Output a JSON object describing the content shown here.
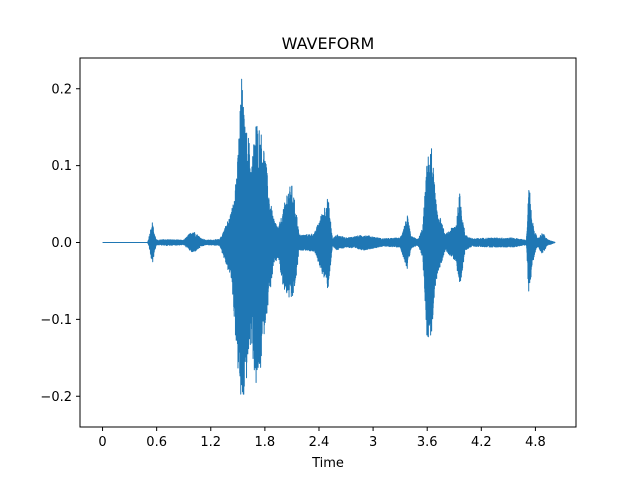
{
  "chart_data": {
    "type": "line",
    "title": "WAVEFORM",
    "xlabel": "Time",
    "ylabel": "",
    "xlim": [
      -0.25,
      5.25
    ],
    "ylim": [
      -0.24,
      0.24
    ],
    "x_ticks": [
      0,
      0.6,
      1.2,
      1.8,
      2.4,
      3.0,
      3.6,
      4.2,
      4.8
    ],
    "x_tick_labels": [
      "0",
      "0.6",
      "1.2",
      "1.8",
      "2.4",
      "3",
      "3.6",
      "4.2",
      "4.8"
    ],
    "y_ticks": [
      -0.2,
      -0.1,
      0.0,
      0.1,
      0.2
    ],
    "y_tick_labels": [
      "−0.2",
      "−0.1",
      "0.0",
      "0.1",
      "0.2"
    ],
    "grid": false,
    "series": [
      {
        "color": "#1f77b4",
        "duration": 5.02,
        "amplitude_envelope": {
          "time": [
            0.0,
            0.5,
            0.52,
            0.55,
            0.58,
            0.6,
            0.7,
            0.9,
            1.0,
            1.1,
            1.15,
            1.3,
            1.43,
            1.5,
            1.54,
            1.58,
            1.62,
            1.65,
            1.7,
            1.75,
            1.8,
            1.85,
            1.9,
            1.95,
            2.0,
            2.05,
            2.1,
            2.15,
            2.18,
            2.25,
            2.35,
            2.5,
            2.55,
            2.6,
            2.7,
            2.9,
            3.1,
            3.3,
            3.38,
            3.42,
            3.5,
            3.55,
            3.6,
            3.65,
            3.7,
            3.8,
            3.92,
            3.96,
            4.02,
            4.1,
            4.3,
            4.55,
            4.7,
            4.73,
            4.76,
            4.82,
            4.88,
            4.93,
            5.02
          ],
          "upper": [
            0.0,
            0.0,
            0.01,
            0.028,
            0.01,
            0.003,
            0.004,
            0.003,
            0.016,
            0.005,
            0.003,
            0.004,
            0.04,
            0.11,
            0.22,
            0.15,
            0.14,
            0.1,
            0.16,
            0.15,
            0.12,
            0.06,
            0.03,
            0.02,
            0.04,
            0.07,
            0.075,
            0.04,
            0.01,
            0.01,
            0.012,
            0.06,
            0.005,
            0.01,
            0.006,
            0.01,
            0.005,
            0.006,
            0.035,
            0.008,
            0.004,
            0.02,
            0.11,
            0.125,
            0.05,
            0.01,
            0.025,
            0.065,
            0.01,
            0.005,
            0.006,
            0.006,
            0.003,
            0.08,
            0.03,
            0.005,
            0.013,
            0.004,
            0.0
          ],
          "lower": [
            0.0,
            0.0,
            -0.008,
            -0.03,
            -0.01,
            -0.003,
            -0.004,
            -0.003,
            -0.014,
            -0.005,
            -0.003,
            -0.004,
            -0.05,
            -0.165,
            -0.22,
            -0.2,
            -0.15,
            -0.13,
            -0.19,
            -0.17,
            -0.11,
            -0.07,
            -0.03,
            -0.02,
            -0.06,
            -0.07,
            -0.08,
            -0.045,
            -0.01,
            -0.01,
            -0.012,
            -0.062,
            -0.005,
            -0.01,
            -0.006,
            -0.01,
            -0.005,
            -0.006,
            -0.035,
            -0.008,
            -0.004,
            -0.02,
            -0.13,
            -0.12,
            -0.05,
            -0.01,
            -0.025,
            -0.07,
            -0.01,
            -0.005,
            -0.006,
            -0.006,
            -0.003,
            -0.08,
            -0.03,
            -0.005,
            -0.015,
            -0.004,
            0.0
          ]
        }
      }
    ]
  }
}
